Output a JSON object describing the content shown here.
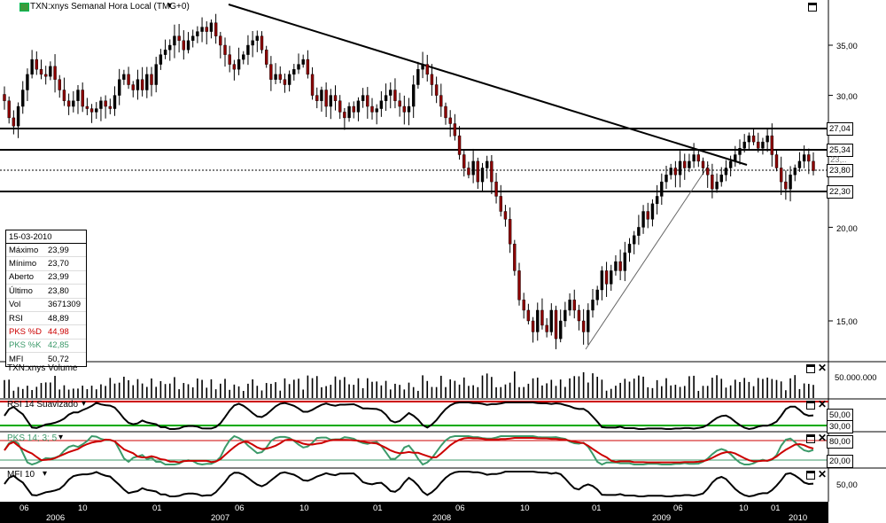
{
  "chart_data": {
    "type": "candlestick",
    "title": "TXN:xnys Semanal Hora Local (TMG+0)",
    "y_axis": {
      "scale": "log",
      "ticks": [
        "35,00",
        "30,00",
        "20,00",
        "15,00"
      ]
    },
    "horizontal_levels": [
      "27,04",
      "25,34",
      "22,30"
    ],
    "last_price": "23,80",
    "last_price_alt": "23,..",
    "x_ticks_months": [
      "06",
      "10",
      "01",
      "06",
      "10",
      "01",
      "06",
      "10",
      "01",
      "06",
      "10",
      "01"
    ],
    "x_ticks_years": [
      "2006",
      "2007",
      "2008",
      "2009",
      "2010"
    ],
    "series": [
      {
        "name": "TXN:xnys Weekly close (approx.)",
        "values": [
          29.5,
          28.0,
          27.3,
          29.0,
          30.5,
          32.0,
          33.5,
          32.5,
          32.0,
          31.8,
          32.8,
          31.5,
          30.5,
          29.5,
          29.0,
          29.5,
          30.5,
          29.0,
          28.8,
          28.5,
          28.8,
          29.5,
          29.0,
          28.8,
          30.0,
          31.5,
          32.0,
          31.0,
          30.5,
          31.5,
          30.5,
          32.0,
          31.0,
          33.0,
          34.0,
          34.5,
          35.0,
          36.0,
          35.5,
          34.5,
          35.5,
          36.0,
          36.5,
          37.0,
          36.5,
          37.5,
          36.0,
          35.0,
          34.0,
          33.0,
          32.5,
          33.5,
          34.0,
          35.0,
          35.5,
          36.0,
          34.5,
          33.0,
          31.5,
          32.0,
          31.5,
          31.0,
          32.0,
          32.5,
          33.0,
          33.5,
          32.0,
          30.0,
          29.5,
          30.5,
          29.0,
          30.0,
          29.5,
          28.5,
          28.0,
          29.0,
          28.5,
          29.5,
          30.0,
          29.0,
          28.5,
          28.8,
          29.5,
          30.0,
          30.5,
          29.5,
          29.0,
          28.5,
          29.0,
          31.0,
          32.5,
          33.0,
          32.0,
          31.0,
          30.0,
          29.0,
          28.0,
          27.5,
          26.5,
          25.0,
          24.0,
          23.5,
          24.5,
          23.0,
          24.0,
          24.5,
          23.0,
          22.0,
          21.0,
          20.5,
          19.0,
          17.5,
          16.0,
          15.5,
          15.0,
          14.5,
          15.5,
          14.8,
          14.5,
          15.5,
          14.2,
          15.0,
          15.5,
          16.0,
          15.5,
          15.0,
          14.5,
          15.5,
          16.0,
          16.5,
          17.5,
          16.8,
          17.5,
          18.0,
          17.5,
          18.5,
          19.0,
          19.5,
          20.0,
          21.0,
          20.5,
          21.5,
          22.0,
          23.0,
          23.5,
          24.0,
          23.5,
          24.5,
          24.0,
          24.5,
          25.0,
          24.5,
          24.0,
          23.5,
          22.5,
          23.0,
          23.5,
          24.0,
          24.5,
          25.0,
          25.5,
          26.0,
          26.5,
          26.0,
          25.5,
          26.0,
          26.5,
          25.0,
          24.0,
          23.0,
          22.5,
          23.5,
          24.0,
          24.5,
          25.0,
          24.5,
          23.8
        ]
      }
    ]
  },
  "window": {
    "title": "TXN:xnys Semanal Hora Local (TMG+0)",
    "dropdown_glyph": "▾"
  },
  "info": {
    "date": "15-03-2010",
    "rows": [
      {
        "label": "Máximo",
        "value": "23,99",
        "color": "#000000"
      },
      {
        "label": "Mínimo",
        "value": "23,70",
        "color": "#000000"
      },
      {
        "label": "Aberto",
        "value": "23,99",
        "color": "#000000"
      },
      {
        "label": "Último",
        "value": "23,80",
        "color": "#000000"
      },
      {
        "label": "Vol",
        "value": "3671309",
        "color": "#000000"
      },
      {
        "label": "RSI",
        "value": "48,89",
        "color": "#000000"
      },
      {
        "label": "PKS %D",
        "value": "44,98",
        "color": "#cc0000"
      },
      {
        "label": "PKS %K",
        "value": "42,85",
        "color": "#3c9a6a"
      },
      {
        "label": "MFI",
        "value": "50,72",
        "color": "#000000"
      }
    ]
  },
  "panes": {
    "volume": {
      "title": "TXN:xnys Volume",
      "tick": "50.000.000"
    },
    "rsi": {
      "title": "RSI 14 Suavizado",
      "ticks": [
        "50,00",
        "30,00"
      ],
      "line_color": "#cc0000",
      "band_color": "#00aa00"
    },
    "pks": {
      "title": "PKS 14; 3; 5",
      "ticks": [
        "80,00",
        "20,00"
      ],
      "k_color": "#3c9a6a",
      "d_color": "#cc0000"
    },
    "mfi": {
      "title": "MFI 10",
      "ticks": [
        "50,00"
      ]
    }
  },
  "colors": {
    "up": "#000000",
    "down": "#8b0000",
    "accent": "#3c9a3c"
  },
  "controls": {
    "close_glyph": "✕",
    "dropdown": "▾"
  }
}
